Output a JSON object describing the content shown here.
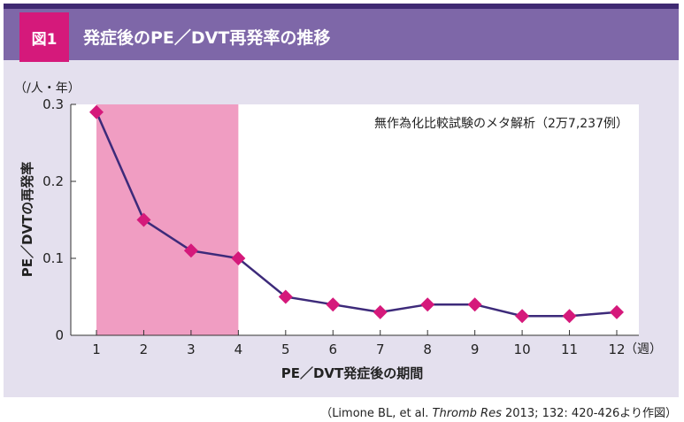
{
  "figure": {
    "badge": "図1",
    "title": "発症後のPE／DVT再発率の推移"
  },
  "colors": {
    "header": "#7e67a8",
    "badge": "#d5197b",
    "panel": "#e4e0ee",
    "highlight": "#f09dc2",
    "line": "#3d2a7a",
    "marker": "#d5197b"
  },
  "chart_data": {
    "type": "line",
    "y_unit": "（/人・年）",
    "ylabel": "PE／DVTの再発率",
    "xlabel": "PE／DVT発症後の期間",
    "x_unit": "（週）",
    "annotation": "無作為化比較試験のメタ解析（2万7,237例）",
    "x": [
      1,
      2,
      3,
      4,
      5,
      6,
      7,
      8,
      9,
      10,
      11,
      12
    ],
    "y": [
      0.29,
      0.15,
      0.11,
      0.1,
      0.05,
      0.04,
      0.03,
      0.04,
      0.04,
      0.025,
      0.025,
      0.03
    ],
    "yticks": [
      "0",
      "0.1",
      "0.2",
      "0.3"
    ],
    "ytick_values": [
      0,
      0.1,
      0.2,
      0.3
    ],
    "xticks": [
      "1",
      "2",
      "3",
      "4",
      "5",
      "6",
      "7",
      "8",
      "9",
      "10",
      "11",
      "12"
    ],
    "ylim": [
      0,
      0.3
    ],
    "xlim": [
      1,
      12
    ],
    "highlight_range": [
      1,
      4
    ],
    "grid": false
  },
  "citation": {
    "pre": "（Limone BL, et al. ",
    "journal": "Thromb Res",
    "post": " 2013; 132: 420-426より作図）"
  }
}
